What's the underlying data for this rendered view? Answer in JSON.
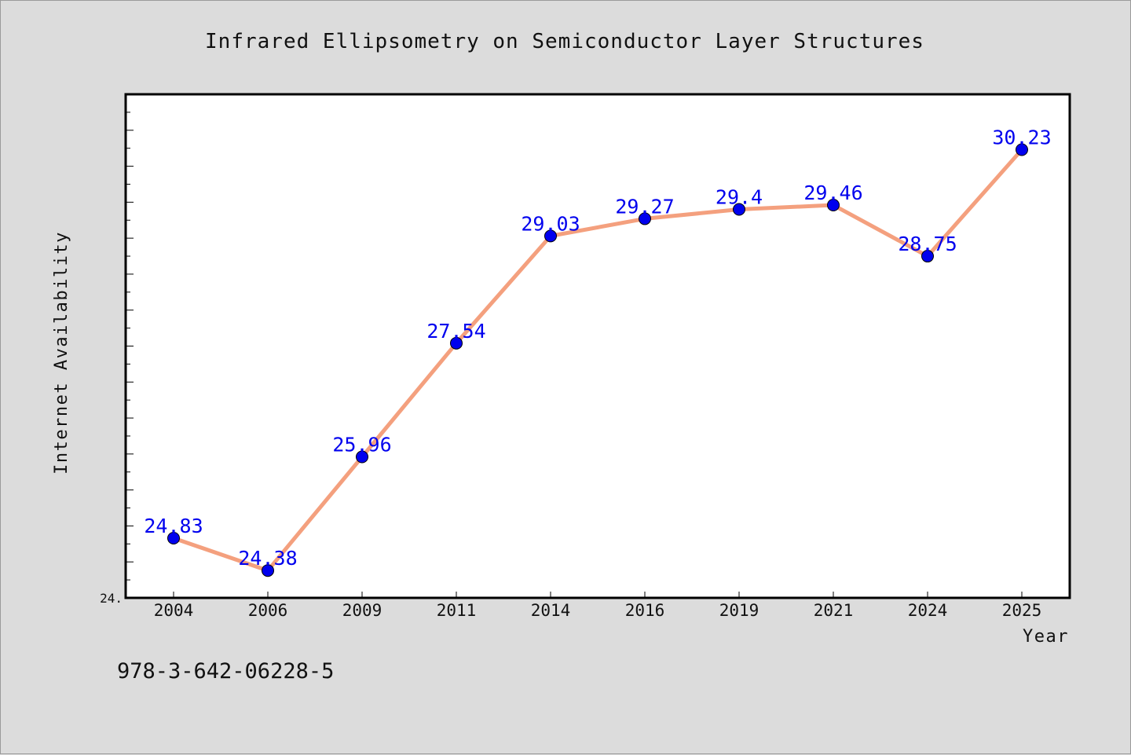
{
  "chart_data": {
    "type": "line",
    "title": "Infrared Ellipsometry on Semiconductor Layer Structures",
    "xlabel": "Year",
    "ylabel": "Internet Availability",
    "categories": [
      "2004",
      "2006",
      "2009",
      "2011",
      "2014",
      "2016",
      "2019",
      "2021",
      "2024",
      "2025"
    ],
    "series": [
      {
        "values": [
          24.83,
          24.38,
          25.96,
          27.54,
          29.03,
          29.27,
          29.4,
          29.46,
          28.75,
          30.23
        ]
      }
    ],
    "data_labels": [
      "24.83",
      "24.38",
      "25.96",
      "27.54",
      "29.03",
      "29.27",
      "29.4",
      "29.46",
      "28.75",
      "30.23"
    ],
    "ylim": [
      24.0,
      31.0
    ],
    "y_tick_label": "24.",
    "grid": false,
    "legend": "none",
    "colors": {
      "line": "#f4a07e",
      "marker": "#0000ee",
      "data_label": "#0000ee",
      "plot_background": "#ffffff",
      "page_background": "#dcdcdc"
    }
  },
  "footnote": "978-3-642-06228-5"
}
